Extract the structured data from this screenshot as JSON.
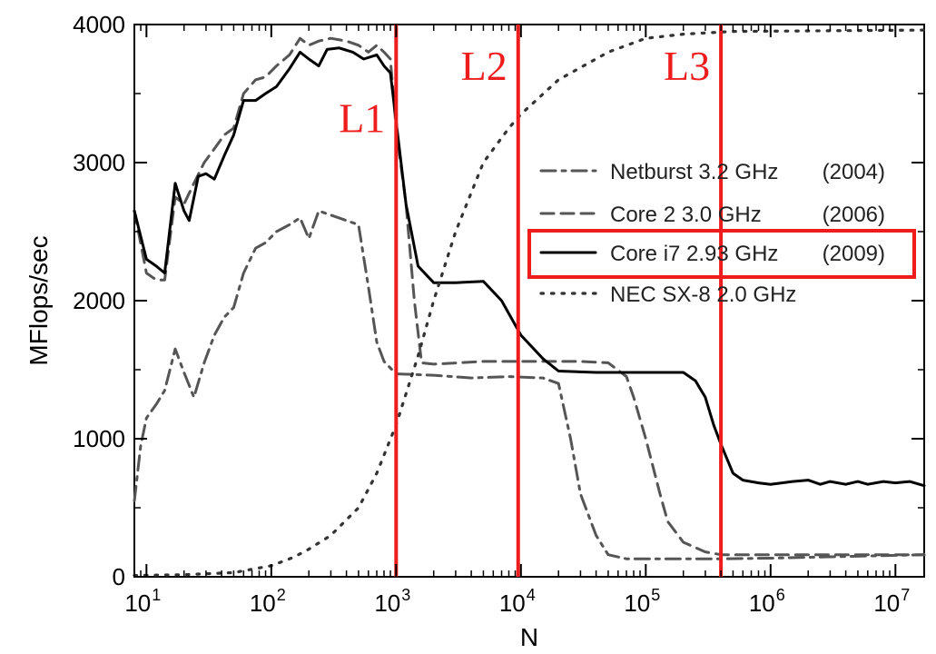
{
  "chart_data": {
    "type": "line",
    "xlabel": "N",
    "ylabel": "MFlops/sec",
    "xscale": "log",
    "xlim": [
      8,
      17000000
    ],
    "ylim": [
      0,
      4000
    ],
    "grid": false,
    "legend_position": "center-right",
    "y_ticks": [
      {
        "value": 0,
        "label": "0"
      },
      {
        "value": 1000,
        "label": "1000"
      },
      {
        "value": 2000,
        "label": "2000"
      },
      {
        "value": 3000,
        "label": "3000"
      },
      {
        "value": 4000,
        "label": "4000"
      }
    ],
    "x_ticks": [
      {
        "value": 10,
        "base": "10",
        "exp": "1"
      },
      {
        "value": 100,
        "base": "10",
        "exp": "2"
      },
      {
        "value": 1000,
        "base": "10",
        "exp": "3"
      },
      {
        "value": 10000,
        "base": "10",
        "exp": "4"
      },
      {
        "value": 100000,
        "base": "10",
        "exp": "5"
      },
      {
        "value": 1000000,
        "base": "10",
        "exp": "6"
      },
      {
        "value": 10000000,
        "base": "10",
        "exp": "7"
      }
    ],
    "cache_markers": [
      {
        "label": "L1",
        "x": 1000,
        "label_y": 3220
      },
      {
        "label": "L2",
        "x": 9500,
        "label_y": 3600
      },
      {
        "label": "L3",
        "x": 400000,
        "label_y": 3600
      }
    ],
    "highlight_color": "#ee1c1c",
    "series": [
      {
        "name": "Netburst 3.2 GHz",
        "year": "(2004)",
        "style": "dashdot",
        "color": "#555555",
        "highlighted": false,
        "points": [
          [
            8,
            550
          ],
          [
            9,
            950
          ],
          [
            10,
            1150
          ],
          [
            12,
            1250
          ],
          [
            14,
            1350
          ],
          [
            17,
            1650
          ],
          [
            20,
            1480
          ],
          [
            24,
            1300
          ],
          [
            29,
            1550
          ],
          [
            35,
            1750
          ],
          [
            42,
            1880
          ],
          [
            50,
            1950
          ],
          [
            60,
            2200
          ],
          [
            75,
            2380
          ],
          [
            90,
            2420
          ],
          [
            110,
            2500
          ],
          [
            140,
            2550
          ],
          [
            170,
            2600
          ],
          [
            200,
            2450
          ],
          [
            240,
            2650
          ],
          [
            300,
            2620
          ],
          [
            400,
            2580
          ],
          [
            500,
            2550
          ],
          [
            600,
            2100
          ],
          [
            700,
            1700
          ],
          [
            800,
            1560
          ],
          [
            1000,
            1470
          ],
          [
            2000,
            1460
          ],
          [
            4000,
            1440
          ],
          [
            8000,
            1450
          ],
          [
            15000,
            1440
          ],
          [
            20000,
            1400
          ],
          [
            25000,
            1000
          ],
          [
            30000,
            600
          ],
          [
            40000,
            300
          ],
          [
            50000,
            160
          ],
          [
            70000,
            130
          ],
          [
            100000,
            130
          ],
          [
            400000,
            130
          ],
          [
            1000000,
            135
          ],
          [
            17000000,
            160
          ]
        ]
      },
      {
        "name": "Core 2 3.0 GHz",
        "year": "(2006)",
        "style": "dashed",
        "color": "#555555",
        "highlighted": false,
        "points": [
          [
            8,
            2650
          ],
          [
            10,
            2200
          ],
          [
            12,
            2150
          ],
          [
            14,
            2150
          ],
          [
            17,
            2750
          ],
          [
            20,
            2700
          ],
          [
            24,
            2850
          ],
          [
            29,
            3000
          ],
          [
            35,
            3100
          ],
          [
            42,
            3200
          ],
          [
            50,
            3250
          ],
          [
            60,
            3500
          ],
          [
            75,
            3600
          ],
          [
            90,
            3620
          ],
          [
            110,
            3700
          ],
          [
            140,
            3780
          ],
          [
            170,
            3900
          ],
          [
            200,
            3850
          ],
          [
            240,
            3880
          ],
          [
            300,
            3900
          ],
          [
            400,
            3880
          ],
          [
            500,
            3850
          ],
          [
            600,
            3800
          ],
          [
            700,
            3850
          ],
          [
            800,
            3800
          ],
          [
            900,
            3750
          ],
          [
            1000,
            3250
          ],
          [
            1200,
            2700
          ],
          [
            1400,
            2000
          ],
          [
            1600,
            1550
          ],
          [
            2000,
            1540
          ],
          [
            5000,
            1560
          ],
          [
            10000,
            1560
          ],
          [
            30000,
            1560
          ],
          [
            50000,
            1550
          ],
          [
            70000,
            1450
          ],
          [
            80000,
            1300
          ],
          [
            100000,
            1000
          ],
          [
            130000,
            600
          ],
          [
            150000,
            400
          ],
          [
            200000,
            250
          ],
          [
            300000,
            180
          ],
          [
            400000,
            160
          ],
          [
            1000000,
            160
          ],
          [
            17000000,
            160
          ]
        ]
      },
      {
        "name": "Core i7 2.93 GHz",
        "year": "(2009)",
        "style": "solid",
        "color": "#000000",
        "highlighted": true,
        "points": [
          [
            8,
            2650
          ],
          [
            10,
            2300
          ],
          [
            12,
            2250
          ],
          [
            14,
            2200
          ],
          [
            17,
            2850
          ],
          [
            20,
            2650
          ],
          [
            22,
            2580
          ],
          [
            26,
            2900
          ],
          [
            30,
            2920
          ],
          [
            35,
            2880
          ],
          [
            42,
            3050
          ],
          [
            50,
            3200
          ],
          [
            60,
            3450
          ],
          [
            75,
            3450
          ],
          [
            90,
            3500
          ],
          [
            110,
            3550
          ],
          [
            140,
            3680
          ],
          [
            170,
            3800
          ],
          [
            200,
            3750
          ],
          [
            240,
            3700
          ],
          [
            280,
            3820
          ],
          [
            350,
            3830
          ],
          [
            450,
            3800
          ],
          [
            550,
            3750
          ],
          [
            700,
            3780
          ],
          [
            800,
            3700
          ],
          [
            900,
            3650
          ],
          [
            1000,
            3300
          ],
          [
            1200,
            2700
          ],
          [
            1500,
            2250
          ],
          [
            2000,
            2130
          ],
          [
            3000,
            2130
          ],
          [
            5000,
            2140
          ],
          [
            7000,
            2000
          ],
          [
            10000,
            1750
          ],
          [
            15000,
            1580
          ],
          [
            20000,
            1490
          ],
          [
            40000,
            1480
          ],
          [
            100000,
            1480
          ],
          [
            200000,
            1480
          ],
          [
            250000,
            1420
          ],
          [
            300000,
            1300
          ],
          [
            350000,
            1100
          ],
          [
            400000,
            960
          ],
          [
            500000,
            750
          ],
          [
            600000,
            700
          ],
          [
            800000,
            680
          ],
          [
            1000000,
            670
          ],
          [
            1500000,
            690
          ],
          [
            2000000,
            700
          ],
          [
            2500000,
            670
          ],
          [
            3000000,
            690
          ],
          [
            4000000,
            670
          ],
          [
            5000000,
            690
          ],
          [
            6000000,
            670
          ],
          [
            8000000,
            690
          ],
          [
            10000000,
            680
          ],
          [
            13000000,
            690
          ],
          [
            17000000,
            660
          ]
        ]
      },
      {
        "name": "NEC SX-8 2.0 GHz",
        "year": "",
        "style": "dotted",
        "color": "#333333",
        "highlighted": false,
        "points": [
          [
            8,
            10
          ],
          [
            20,
            15
          ],
          [
            50,
            30
          ],
          [
            100,
            80
          ],
          [
            150,
            140
          ],
          [
            200,
            200
          ],
          [
            300,
            300
          ],
          [
            500,
            500
          ],
          [
            700,
            750
          ],
          [
            1000,
            1100
          ],
          [
            1500,
            1600
          ],
          [
            2000,
            2000
          ],
          [
            3000,
            2500
          ],
          [
            5000,
            3000
          ],
          [
            8000,
            3250
          ],
          [
            10000,
            3350
          ],
          [
            20000,
            3600
          ],
          [
            50000,
            3800
          ],
          [
            100000,
            3900
          ],
          [
            200000,
            3930
          ],
          [
            500000,
            3950
          ],
          [
            17000000,
            3960
          ]
        ]
      }
    ]
  }
}
